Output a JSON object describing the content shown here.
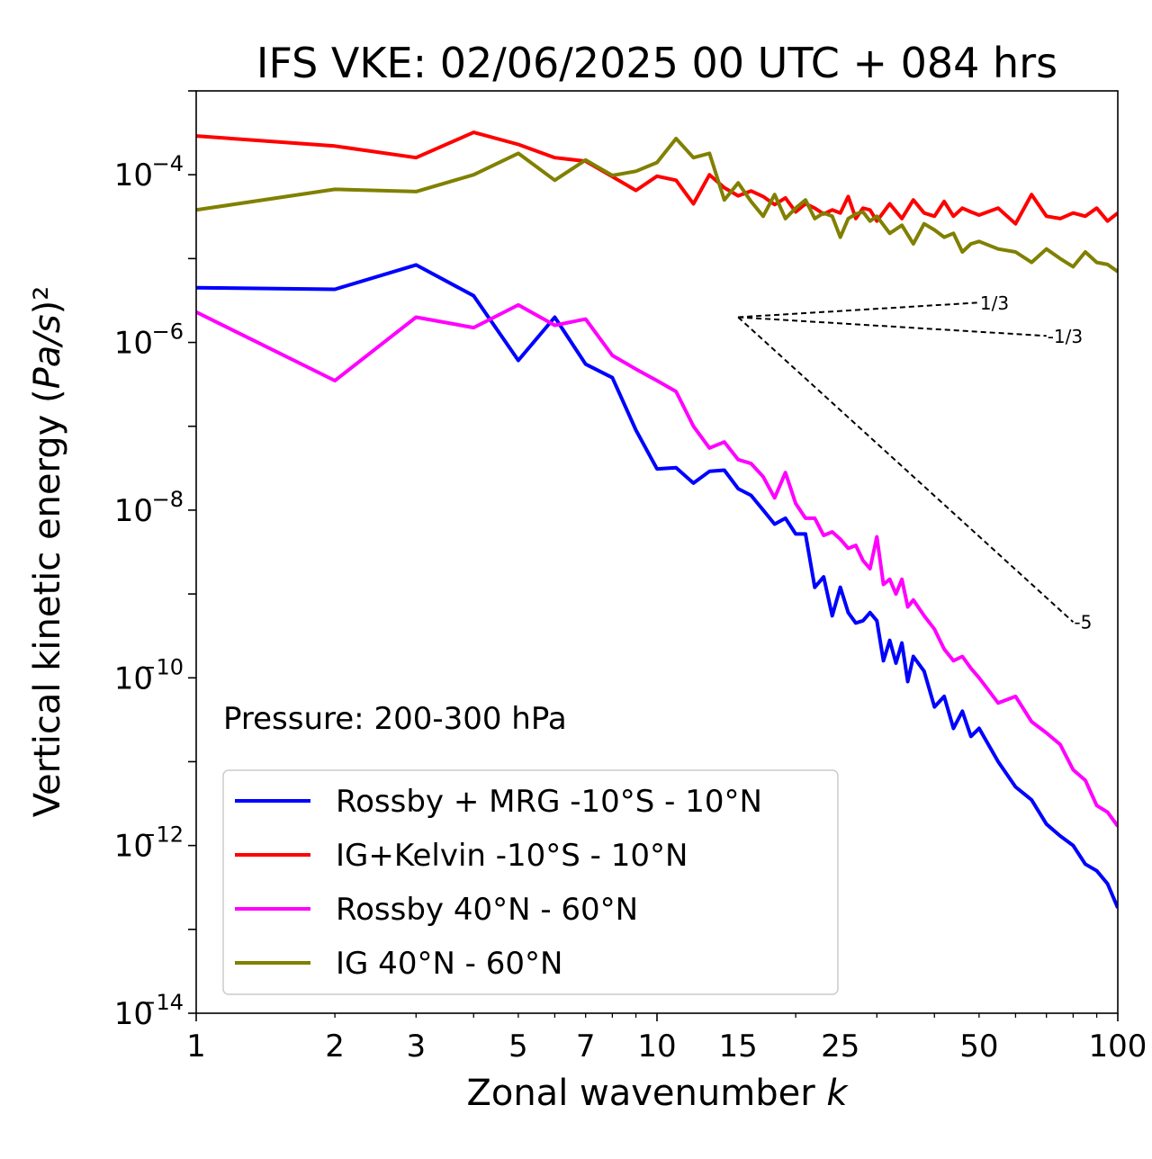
{
  "chart_data": {
    "type": "line",
    "title": "IFS VKE: 02/06/2025 00 UTC + 084 hrs",
    "xlabel": "Zonal wavenumber k",
    "ylabel": "Vertical kinetic energy (Pa/s)²",
    "xscale": "log",
    "yscale": "log",
    "xlim": [
      1,
      100
    ],
    "ylim": [
      1e-14,
      0.001
    ],
    "x_ticks": [
      1,
      2,
      3,
      5,
      7,
      10,
      15,
      25,
      50,
      100
    ],
    "y_ticks": [
      {
        "value": 1e-14,
        "base": "10",
        "exp": "−14"
      },
      {
        "value": 1e-12,
        "base": "10",
        "exp": "−12"
      },
      {
        "value": 1e-10,
        "base": "10",
        "exp": "−10"
      },
      {
        "value": 1e-08,
        "base": "10",
        "exp": "−8"
      },
      {
        "value": 1e-06,
        "base": "10",
        "exp": "−6"
      },
      {
        "value": 0.0001,
        "base": "10",
        "exp": "−4"
      }
    ],
    "annotation": "Pressure: 200-300 hPa",
    "legend_position": "bottom-left",
    "grid": false,
    "series": [
      {
        "name": "Rossby + MRG -10°S - 10°N",
        "color": "#0000ff",
        "x": [
          1,
          2,
          3,
          4,
          5,
          6,
          7,
          8,
          9,
          10,
          11,
          12,
          13,
          14,
          15,
          16,
          17,
          18,
          19,
          20,
          21,
          22,
          23,
          24,
          25,
          26,
          27,
          28,
          29,
          30,
          31,
          32,
          33,
          34,
          35,
          36,
          38,
          40,
          42,
          44,
          46,
          48,
          50,
          55,
          60,
          65,
          70,
          75,
          80,
          85,
          90,
          95,
          100
        ],
        "y": [
          4.5e-06,
          4.3e-06,
          8.4e-06,
          3.6e-06,
          6.1e-07,
          2e-06,
          5.5e-07,
          3.8e-07,
          9e-08,
          3.1e-08,
          3.2e-08,
          2.1e-08,
          2.9e-08,
          3e-08,
          1.8e-08,
          1.5e-08,
          1e-08,
          6.8e-09,
          8e-09,
          5.2e-09,
          5.2e-09,
          1.2e-09,
          1.6e-09,
          5.5e-10,
          1.2e-09,
          6e-10,
          4.5e-10,
          4.8e-10,
          6e-10,
          4.8e-10,
          1.6e-10,
          2.8e-10,
          1.5e-10,
          2.6e-10,
          9e-11,
          1.8e-10,
          1.2e-10,
          4.5e-11,
          6e-11,
          2.5e-11,
          4e-11,
          2e-11,
          2.5e-11,
          1e-11,
          5e-12,
          3.5e-12,
          1.8e-12,
          1.3e-12,
          1e-12,
          6e-13,
          5e-13,
          3.5e-13,
          1.8e-13
        ]
      },
      {
        "name": "IG+Kelvin -10°S - 10°N",
        "color": "#ff0000",
        "x": [
          1,
          2,
          3,
          4,
          5,
          6,
          7,
          8,
          9,
          10,
          11,
          12,
          13,
          14,
          15,
          16,
          17,
          18,
          19,
          20,
          21,
          22,
          23,
          24,
          25,
          26,
          27,
          28,
          29,
          30,
          32,
          34,
          36,
          38,
          40,
          42,
          44,
          46,
          48,
          50,
          55,
          60,
          65,
          70,
          75,
          80,
          85,
          90,
          95,
          100
        ],
        "y": [
          0.00029,
          0.00022,
          0.00016,
          0.00032,
          0.00023,
          0.00016,
          0.000145,
          9.5e-05,
          6.5e-05,
          9.6e-05,
          8.6e-05,
          4.5e-05,
          0.0001,
          7e-05,
          5.6e-05,
          6.4e-05,
          5.5e-05,
          4.4e-05,
          5.3e-05,
          3.6e-05,
          4.5e-05,
          4e-05,
          3.4e-05,
          3.8e-05,
          3.5e-05,
          5.5e-05,
          3e-05,
          4e-05,
          3.8e-05,
          2.8e-05,
          4.5e-05,
          3e-05,
          5e-05,
          3.5e-05,
          3.2e-05,
          4.8e-05,
          3.2e-05,
          4e-05,
          3.6e-05,
          3.3e-05,
          4e-05,
          2.6e-05,
          5.8e-05,
          3.2e-05,
          3e-05,
          3.5e-05,
          3.2e-05,
          4e-05,
          2.8e-05,
          3.5e-05
        ]
      },
      {
        "name": "Rossby 40°N - 60°N",
        "color": "#ff00ff",
        "x": [
          1,
          2,
          3,
          4,
          5,
          6,
          7,
          8,
          9,
          10,
          11,
          12,
          13,
          14,
          15,
          16,
          17,
          18,
          19,
          20,
          21,
          22,
          23,
          24,
          25,
          26,
          27,
          28,
          29,
          30,
          31,
          32,
          33,
          34,
          35,
          36,
          38,
          40,
          42,
          44,
          46,
          48,
          50,
          55,
          60,
          65,
          70,
          75,
          80,
          85,
          90,
          95,
          100
        ],
        "y": [
          2.3e-06,
          3.5e-07,
          2e-06,
          1.5e-06,
          2.8e-06,
          1.6e-06,
          1.9e-06,
          7e-07,
          4.8e-07,
          3.5e-07,
          2.6e-07,
          1e-07,
          5.5e-08,
          6.5e-08,
          4e-08,
          3.6e-08,
          2.5e-08,
          1.4e-08,
          2.8e-08,
          1.2e-08,
          8e-09,
          8e-09,
          5e-09,
          5.5e-09,
          4.5e-09,
          3.5e-09,
          3.8e-09,
          2.5e-09,
          2e-09,
          4.8e-09,
          1.3e-09,
          1.5e-09,
          1e-09,
          1.5e-09,
          7e-10,
          8.5e-10,
          5.5e-10,
          3.8e-10,
          2.2e-10,
          1.6e-10,
          1.8e-10,
          1.3e-10,
          1e-10,
          5e-11,
          6e-11,
          3e-11,
          2.2e-11,
          1.6e-11,
          8e-12,
          6e-12,
          3e-12,
          2.5e-12,
          1.7e-12
        ]
      },
      {
        "name": "IG 40°N - 60°N",
        "color": "#808000",
        "x": [
          1,
          2,
          3,
          4,
          5,
          6,
          7,
          8,
          9,
          10,
          11,
          12,
          13,
          14,
          15,
          16,
          17,
          18,
          19,
          20,
          21,
          22,
          23,
          24,
          25,
          26,
          27,
          28,
          29,
          30,
          32,
          34,
          36,
          38,
          40,
          42,
          44,
          46,
          48,
          50,
          55,
          60,
          65,
          70,
          75,
          80,
          85,
          90,
          95,
          100
        ],
        "y": [
          3.8e-05,
          6.7e-05,
          6.3e-05,
          0.0001,
          0.00018,
          8.6e-05,
          0.00015,
          9.8e-05,
          0.00011,
          0.00014,
          0.00027,
          0.00016,
          0.00018,
          5e-05,
          8e-05,
          4.8e-05,
          3.2e-05,
          5.8e-05,
          3e-05,
          4e-05,
          5e-05,
          3e-05,
          3.5e-05,
          3.2e-05,
          1.8e-05,
          3e-05,
          3.4e-05,
          3.6e-05,
          2.8e-05,
          3.2e-05,
          2e-05,
          2.5e-05,
          1.5e-05,
          2.6e-05,
          2.2e-05,
          1.8e-05,
          2e-05,
          1.2e-05,
          1.5e-05,
          1.6e-05,
          1.3e-05,
          1.2e-05,
          9e-06,
          1.3e-05,
          1e-05,
          8e-06,
          1.2e-05,
          9e-06,
          8.5e-06,
          7e-06
        ]
      }
    ],
    "reference_slopes": [
      {
        "label": "1/3",
        "slope": 0.3333,
        "x0": 15,
        "x1": 50,
        "y0": 2e-06
      },
      {
        "label": "-1/3",
        "slope": -0.3333,
        "x0": 15,
        "x1": 70,
        "y0": 2e-06
      },
      {
        "label": "-5",
        "slope": -5,
        "x0": 15,
        "x1": 80,
        "y0": 2e-06
      }
    ]
  }
}
